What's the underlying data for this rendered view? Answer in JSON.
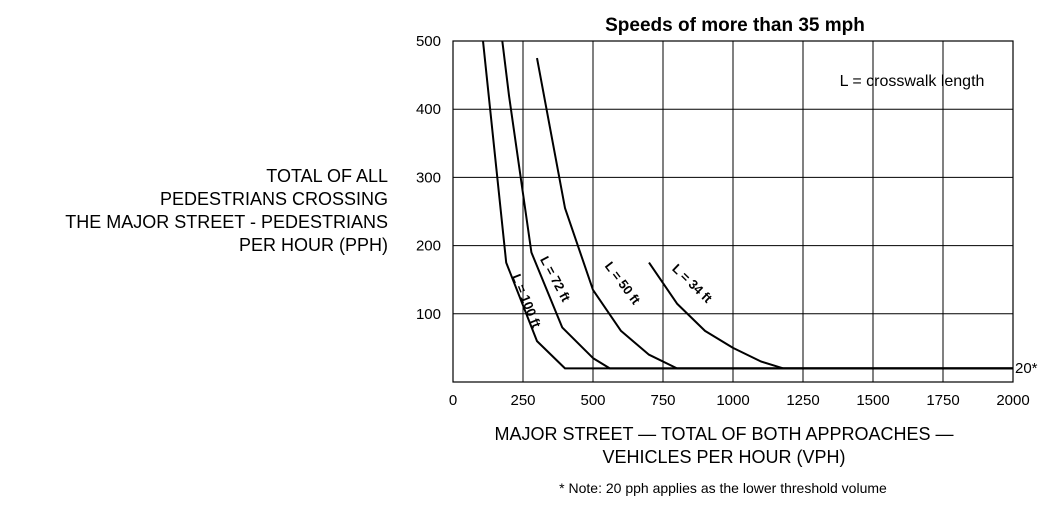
{
  "chart_data": {
    "type": "line",
    "title": "Speeds of more than 35 mph",
    "xlabel_lines": [
      "MAJOR STREET — TOTAL OF BOTH APPROACHES —",
      "VEHICLES PER HOUR (VPH)"
    ],
    "ylabel_lines": [
      "TOTAL OF ALL",
      "PEDESTRIANS CROSSING",
      "THE MAJOR STREET - PEDESTRIANS",
      "PER HOUR (PPH)"
    ],
    "xlim": [
      0,
      2000
    ],
    "ylim": [
      0,
      500
    ],
    "x_ticks": [
      "0",
      "250",
      "500",
      "750",
      "1000",
      "1250",
      "1500",
      "1750",
      "2000"
    ],
    "x_tick_values": [
      0,
      250,
      500,
      750,
      1000,
      1250,
      1500,
      1750,
      2000
    ],
    "y_ticks": [
      "100",
      "200",
      "300",
      "400",
      "500"
    ],
    "y_tick_values": [
      100,
      200,
      300,
      400,
      500
    ],
    "grid": true,
    "annotation": "L = crosswalk length",
    "threshold_label": "20*",
    "note": "* Note: 20 pph applies as the lower threshold volume",
    "series": [
      {
        "name": "L = 100 ft",
        "x": [
          107,
          190,
          300,
          400,
          2000
        ],
        "y": [
          500,
          175,
          60,
          20,
          20
        ]
      },
      {
        "name": "L = 72 ft",
        "x": [
          176,
          200,
          280,
          390,
          500,
          560,
          2000
        ],
        "y": [
          500,
          420,
          190,
          80,
          35,
          20,
          20
        ]
      },
      {
        "name": "L = 50 ft",
        "x": [
          300,
          400,
          500,
          600,
          700,
          800,
          2000
        ],
        "y": [
          475,
          255,
          135,
          75,
          40,
          20,
          20
        ]
      },
      {
        "name": "L = 34 ft",
        "x": [
          700,
          800,
          900,
          1000,
          1100,
          1180,
          2000
        ],
        "y": [
          175,
          115,
          75,
          50,
          30,
          20,
          20
        ]
      }
    ]
  }
}
